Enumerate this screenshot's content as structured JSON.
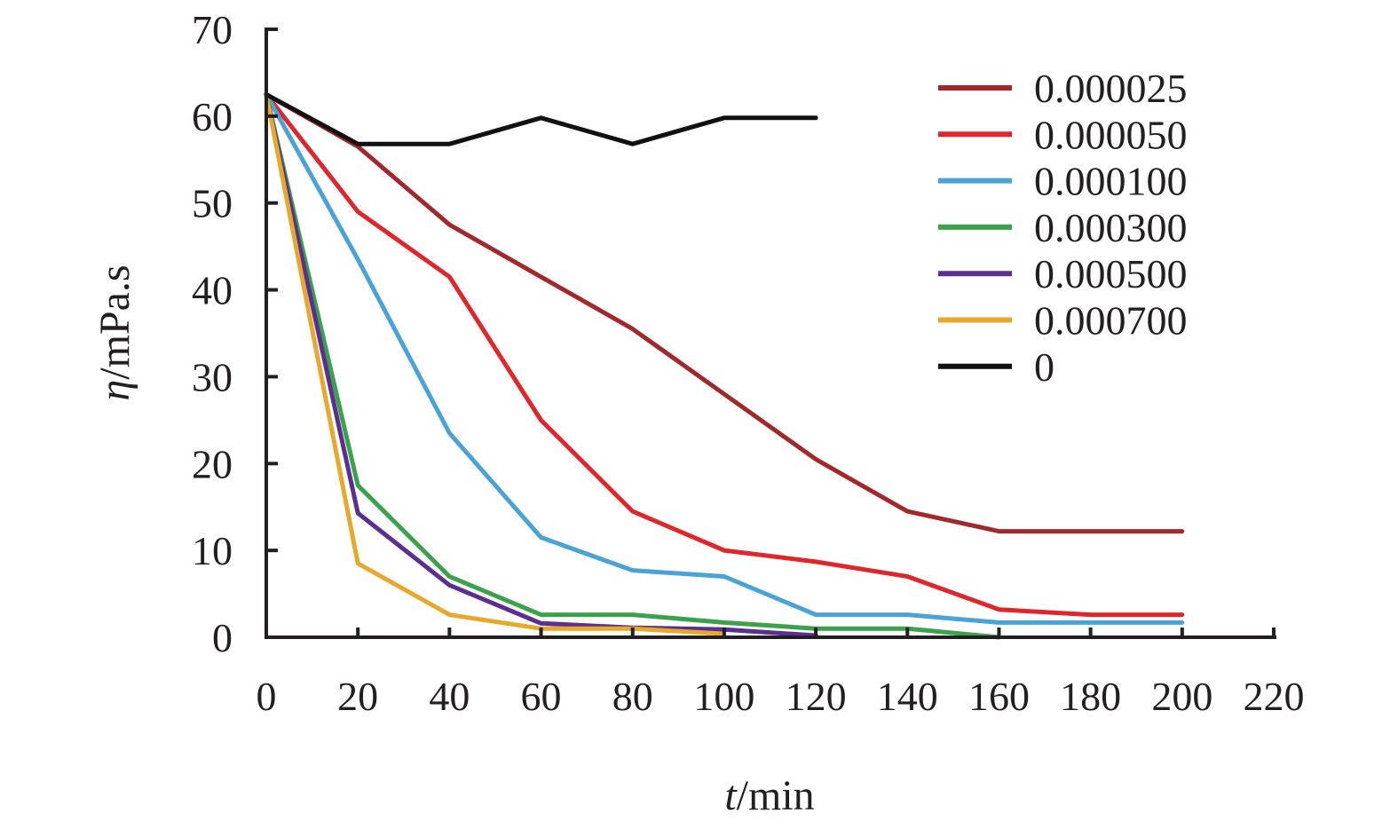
{
  "chart_data": {
    "type": "line",
    "xlabel_italic": "t",
    "xlabel_unit": "/min",
    "ylabel_italic": "η",
    "ylabel_unit": "/mPa.s",
    "xlim": [
      0,
      220
    ],
    "ylim": [
      0,
      70
    ],
    "x_ticks": [
      "0",
      "20",
      "40",
      "60",
      "80",
      "100",
      "120",
      "140",
      "160",
      "180",
      "200",
      "220"
    ],
    "y_ticks": [
      "0",
      "10",
      "20",
      "30",
      "40",
      "50",
      "60",
      "70"
    ],
    "grid": false,
    "legend_position": "top-right",
    "series": [
      {
        "name": "0.000025",
        "color": "#a3282c",
        "x": [
          0,
          20,
          40,
          60,
          80,
          100,
          120,
          140,
          160,
          180,
          200
        ],
        "y": [
          62.5,
          56.5,
          47.5,
          41.5,
          35.5,
          28,
          20.5,
          14.5,
          12.2,
          12.2,
          12.2
        ]
      },
      {
        "name": "0.000050",
        "color": "#e0262c",
        "x": [
          0,
          20,
          40,
          60,
          80,
          100,
          120,
          140,
          160,
          180,
          200
        ],
        "y": [
          62.5,
          49,
          41.5,
          25,
          14.5,
          10,
          8.7,
          7,
          3.2,
          2.6,
          2.6
        ]
      },
      {
        "name": "0.000100",
        "color": "#4aa3d6",
        "x": [
          0,
          20,
          40,
          60,
          80,
          100,
          120,
          140,
          160,
          180,
          200
        ],
        "y": [
          62.5,
          43.5,
          23.5,
          11.5,
          7.7,
          7,
          2.6,
          2.6,
          1.7,
          1.7,
          1.7
        ]
      },
      {
        "name": "0.000300",
        "color": "#3aa24a",
        "x": [
          0,
          20,
          40,
          60,
          80,
          100,
          120,
          140,
          160
        ],
        "y": [
          62.5,
          17.5,
          7,
          2.6,
          2.6,
          1.7,
          1,
          1,
          0
        ]
      },
      {
        "name": "0.000500",
        "color": "#5b2f91",
        "x": [
          0,
          20,
          40,
          60,
          80,
          100,
          120
        ],
        "y": [
          62.5,
          14.3,
          6,
          1.6,
          1.1,
          0.9,
          0.2
        ]
      },
      {
        "name": "0.000700",
        "color": "#e8a92a",
        "x": [
          0,
          20,
          40,
          60,
          80,
          100
        ],
        "y": [
          62.5,
          8.5,
          2.6,
          1,
          1,
          0.4
        ]
      },
      {
        "name": "0",
        "color": "#111111",
        "x": [
          0,
          20,
          40,
          60,
          80,
          100,
          120
        ],
        "y": [
          62.5,
          56.8,
          56.8,
          59.8,
          56.8,
          59.8,
          59.8
        ]
      }
    ]
  }
}
